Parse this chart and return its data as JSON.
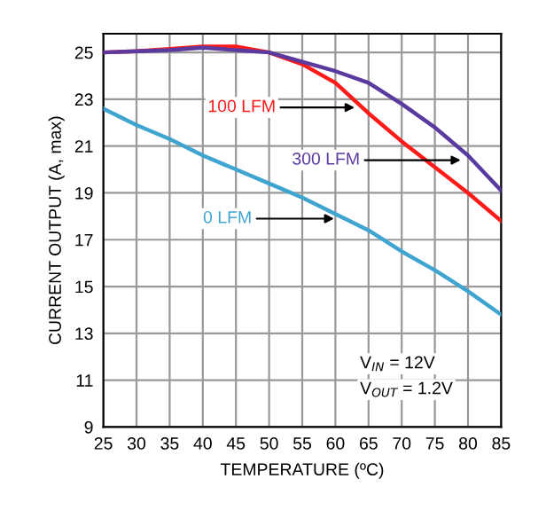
{
  "chart_data": {
    "type": "line",
    "xlabel": "TEMPERATURE (ºC)",
    "ylabel": "CURRENT OUTPUT (A, max)",
    "x": [
      25,
      30,
      35,
      40,
      45,
      50,
      55,
      60,
      65,
      70,
      75,
      80,
      85
    ],
    "series": [
      {
        "color": "#3fa4d0",
        "values": [
          22.6,
          21.9,
          21.3,
          20.6,
          20.0,
          19.4,
          18.8,
          18.1,
          17.4,
          16.5,
          15.7,
          14.8,
          13.8
        ]
      },
      {
        "color": "#ff1a1a",
        "values": [
          25.0,
          25.05,
          25.15,
          25.25,
          25.25,
          25.0,
          24.5,
          23.7,
          22.4,
          21.2,
          20.1,
          19.0,
          17.8
        ]
      },
      {
        "color": "#5a3a9e",
        "values": [
          25.0,
          25.05,
          25.1,
          25.2,
          25.1,
          25.0,
          24.6,
          24.2,
          23.7,
          22.8,
          21.8,
          20.6,
          19.1
        ]
      }
    ],
    "xlim": [
      25,
      85
    ],
    "xticks": [
      25,
      30,
      35,
      40,
      45,
      50,
      55,
      60,
      65,
      70,
      75,
      80,
      85
    ],
    "ylim": [
      9,
      25.8
    ],
    "yticks": [
      9,
      11,
      13,
      15,
      17,
      19,
      21,
      23,
      25
    ],
    "grid": true,
    "annotations": [
      {
        "text": "0 LFM",
        "x": 59.8,
        "y": 17.9
      },
      {
        "text": "100 LFM",
        "x": 62.9,
        "y": 22.65
      },
      {
        "text": "300 LFM",
        "x": 78.9,
        "y": 20.4
      },
      "V$_{IN}$ = 12V",
      "V$_{OUT}$ = 1.2V"
    ]
  }
}
